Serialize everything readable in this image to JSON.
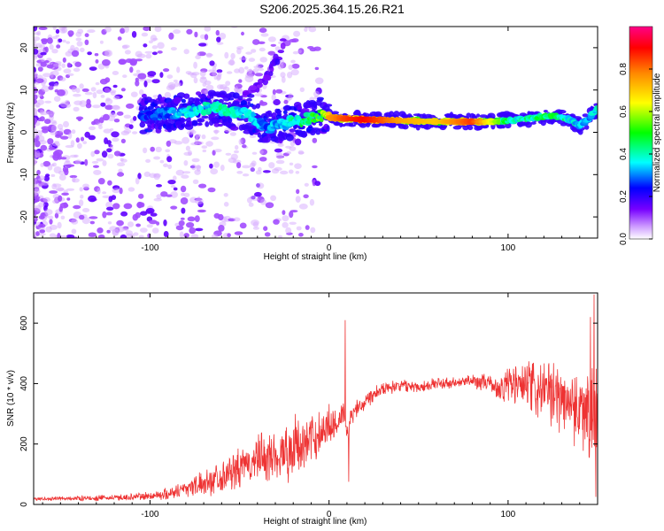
{
  "title": "S206.2025.364.15.26.R21",
  "chart_data": [
    {
      "type": "heatmap",
      "name": "spectrogram",
      "xlabel": "Height of straight line (km)",
      "ylabel": "Frequency (Hz)",
      "xlim": [
        -165,
        150
      ],
      "ylim": [
        -25,
        25
      ],
      "xticks": [
        -100,
        0,
        100
      ],
      "yticks": [
        -20,
        -10,
        0,
        10,
        20
      ],
      "xtick_labels": [
        "-100",
        "0",
        "100"
      ],
      "ytick_labels": [
        "-20",
        "-10",
        "0",
        "10",
        "20"
      ],
      "colorbar": {
        "label": "Normalized spectral amplitude",
        "range": [
          0,
          1
        ],
        "ticks": [
          0.0,
          0.2,
          0.4,
          0.6,
          0.8
        ],
        "tick_labels": [
          "0.0",
          "0.2",
          "0.4",
          "0.6",
          "0.8"
        ],
        "colors": [
          "#ffffff",
          "#cc99ff",
          "#7700ff",
          "#0000ff",
          "#00ffff",
          "#00ff00",
          "#ffff00",
          "#ff8800",
          "#ff0000",
          "#ff0088"
        ]
      },
      "ridge": {
        "x": [
          -165,
          -130,
          -100,
          -80,
          -65,
          -55,
          -45,
          -35,
          -25,
          -15,
          -5,
          0,
          10,
          20,
          40,
          60,
          80,
          95,
          105,
          115,
          125,
          135,
          140,
          145,
          150
        ],
        "y": [
          3,
          3,
          4,
          5,
          6,
          5,
          4,
          1,
          2,
          3,
          4,
          3.5,
          3.2,
          3,
          2.8,
          2.5,
          2.5,
          2.5,
          3,
          3.5,
          4,
          3,
          1.5,
          3,
          6
        ],
        "amplitude": [
          0.15,
          0.2,
          0.3,
          0.4,
          0.45,
          0.45,
          0.4,
          0.35,
          0.4,
          0.5,
          0.6,
          0.75,
          0.85,
          0.9,
          0.75,
          0.7,
          0.85,
          0.55,
          0.45,
          0.5,
          0.55,
          0.45,
          0.4,
          0.35,
          0.45
        ]
      },
      "streak": {
        "x": [
          -65,
          -55,
          -45,
          -35,
          -28,
          -25
        ],
        "y": [
          2,
          5,
          9,
          13,
          18,
          22
        ]
      }
    },
    {
      "type": "line",
      "name": "snr",
      "xlabel": "Height of straight line (km)",
      "ylabel": "SNR (10 * v/v)",
      "xlim": [
        -165,
        150
      ],
      "ylim": [
        0,
        700
      ],
      "xticks": [
        -100,
        0,
        100
      ],
      "yticks": [
        0,
        200,
        400,
        600
      ],
      "xtick_labels": [
        "-100",
        "0",
        "100"
      ],
      "ytick_labels": [
        "0",
        "200",
        "400",
        "600"
      ],
      "color": "#ee3333",
      "trend": {
        "x": [
          -165,
          -140,
          -120,
          -100,
          -90,
          -80,
          -70,
          -60,
          -50,
          -40,
          -30,
          -20,
          -10,
          -5,
          0,
          5,
          8,
          10,
          12,
          15,
          20,
          25,
          30,
          40,
          50,
          60,
          70,
          80,
          90,
          95,
          100,
          110,
          120,
          130,
          140,
          145,
          150
        ],
        "y": [
          18,
          20,
          22,
          28,
          35,
          55,
          70,
          95,
          115,
          150,
          160,
          185,
          210,
          240,
          260,
          280,
          300,
          230,
          280,
          320,
          340,
          370,
          385,
          395,
          390,
          400,
          400,
          410,
          400,
          380,
          400,
          390,
          370,
          355,
          320,
          300,
          300
        ],
        "noise": [
          6,
          8,
          10,
          15,
          20,
          30,
          40,
          55,
          65,
          80,
          95,
          100,
          90,
          80,
          70,
          55,
          50,
          30,
          40,
          40,
          30,
          25,
          22,
          20,
          20,
          20,
          20,
          22,
          30,
          40,
          70,
          90,
          100,
          110,
          130,
          150,
          170
        ]
      },
      "spikes": [
        {
          "x": 9,
          "y": 610
        },
        {
          "x": 11,
          "y": 75
        },
        {
          "x": 148,
          "y": 695
        },
        {
          "x": 149,
          "y": 25
        },
        {
          "x": 146,
          "y": 620
        }
      ]
    }
  ]
}
